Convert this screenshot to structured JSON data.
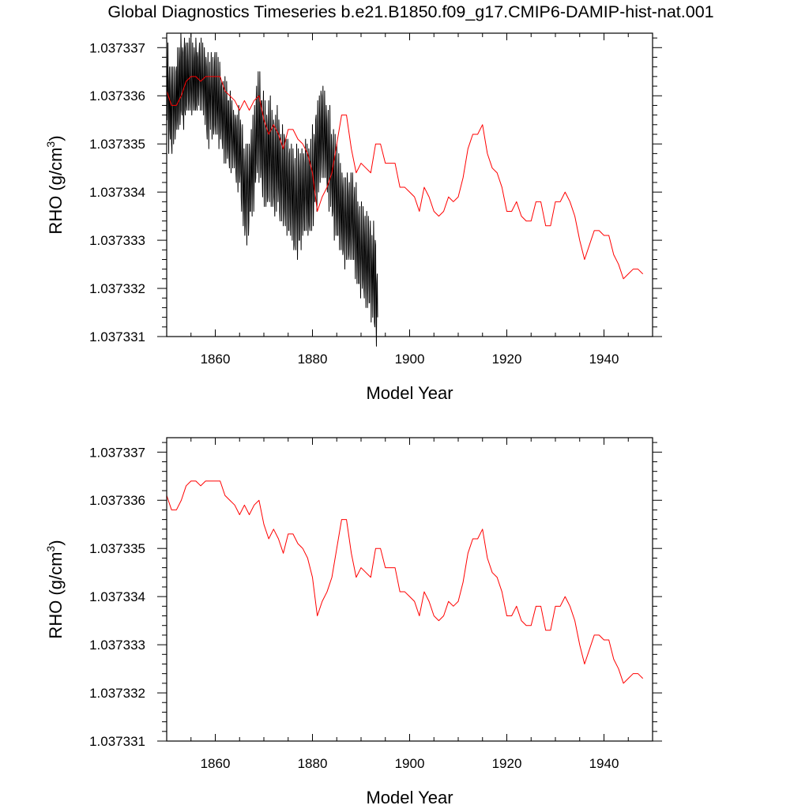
{
  "title": "Global Diagnostics Timeseries b.e21.B1850.f09_g17.CMIP6-DAMIP-hist-nat.001",
  "chart_data": [
    {
      "type": "line",
      "xlabel": "Model Year",
      "ylabel_main": "RHO (g/cm",
      "ylabel_sup": "3",
      "ylabel_close": ")",
      "xlim": [
        1850,
        1950
      ],
      "ylim": [
        1.037331,
        1.0373373
      ],
      "xticks": [
        1860,
        1880,
        1900,
        1920,
        1940
      ],
      "yticks": [
        1.037331,
        1.037332,
        1.037333,
        1.037334,
        1.037335,
        1.037336,
        1.037337
      ],
      "ytick_labels": [
        "1.037331",
        "1.037332",
        "1.037333",
        "1.037334",
        "1.037335",
        "1.037336",
        "1.037337"
      ],
      "grid": false,
      "series": [
        {
          "kind": "monthly",
          "color": "#000000",
          "x_start": 1850,
          "x_step": 0.08333,
          "values": [
            1.0373362,
            1.0373355,
            1.0373364,
            1.0373371,
            1.0373356,
            1.0373348,
            1.0373363,
            1.0373366,
            1.0373353,
            1.0373351,
            1.0373361,
            1.0373366,
            1.037335,
            1.0373348,
            1.0373362,
            1.0373366,
            1.0373358,
            1.037335,
            1.0373357,
            1.0373366,
            1.0373359,
            1.0373351,
            1.0373355,
            1.0373365,
            1.0373366,
            1.0373353,
            1.0373355,
            1.037337,
            1.0373364,
            1.0373353,
            1.0373357,
            1.037337,
            1.0373367,
            1.0373354,
            1.0373357,
            1.0373373,
            1.0373369,
            1.0373357,
            1.0373356,
            1.037337,
            1.0373369,
            1.0373356,
            1.0373353,
            1.0373369,
            1.0373372,
            1.0373357,
            1.0373356,
            1.037337,
            1.0373371,
            1.0373358,
            1.0373357,
            1.0373367,
            1.0373371,
            1.0373361,
            1.0373357,
            1.0373367,
            1.0373372,
            1.0373359,
            1.0373357,
            1.0373363,
            1.0373373,
            1.0373362,
            1.0373356,
            1.0373361,
            1.0373371,
            1.0373367,
            1.0373357,
            1.0373359,
            1.037337,
            1.0373368,
            1.0373357,
            1.0373357,
            1.0373372,
            1.0373369,
            1.0373358,
            1.0373357,
            1.0373369,
            1.0373368,
            1.037336,
            1.0373358,
            1.0373369,
            1.0373371,
            1.0373362,
            1.0373357,
            1.0373366,
            1.0373372,
            1.0373362,
            1.0373357,
            1.0373363,
            1.0373371,
            1.0373364,
            1.0373356,
            1.037336,
            1.037337,
            1.0373366,
            1.0373354,
            1.0373358,
            1.0373368,
            1.0373366,
            1.0373353,
            1.0373351,
            1.0373364,
            1.0373369,
            1.0373357,
            1.0373349,
            1.0373361,
            1.0373367,
            1.0373359,
            1.0373353,
            1.0373361,
            1.0373369,
            1.0373362,
            1.0373351,
            1.0373354,
            1.0373368,
            1.0373364,
            1.0373352,
            1.0373354,
            1.0373367,
            1.0373369,
            1.0373354,
            1.0373352,
            1.0373363,
            1.0373369,
            1.0373357,
            1.0373352,
            1.0373358,
            1.0373368,
            1.0373359,
            1.0373349,
            1.0373355,
            1.0373367,
            1.0373363,
            1.0373351,
            1.0373353,
            1.0373362,
            1.0373363,
            1.0373351,
            1.0373349,
            1.0373359,
            1.0373363,
            1.0373353,
            1.0373346,
            1.0373356,
            1.0373364,
            1.0373356,
            1.0373346,
            1.0373351,
            1.0373363,
            1.0373357,
            1.0373347,
            1.0373349,
            1.0373359,
            1.0373359,
            1.0373347,
            1.0373345,
            1.0373356,
            1.0373361,
            1.0373352,
            1.0373344,
            1.0373355,
            1.0373359,
            1.0373352,
            1.0373345,
            1.0373349,
            1.0373357,
            1.0373354,
            1.0373345,
            1.0373348,
            1.0373356,
            1.0373355,
            1.0373344,
            1.0373342,
            1.0373353,
            1.0373356,
            1.0373347,
            1.037334,
            1.0373346,
            1.0373358,
            1.0373352,
            1.0373342,
            1.0373344,
            1.0373355,
            1.0373353,
            1.0373339,
            1.0373336,
            1.0373348,
            1.0373354,
            1.0373344,
            1.0373333,
            1.0373338,
            1.0373349,
            1.0373344,
            1.0373331,
            1.0373333,
            1.0373346,
            1.037335,
            1.0373338,
            1.0373329,
            1.0373342,
            1.037335,
            1.0373342,
            1.0373331,
            1.0373334,
            1.037335,
            1.0373347,
            1.0373336,
            1.0373336,
            1.0373348,
            1.0373353,
            1.0373342,
            1.0373335,
            1.0373347,
            1.0373356,
            1.0373346,
            1.0373336,
            1.0373342,
            1.0373358,
            1.0373353,
            1.0373342,
            1.0373343,
            1.0373359,
            1.0373362,
            1.0373346,
            1.0373344,
            1.0373357,
            1.0373365,
            1.0373352,
            1.0373342,
            1.0373352,
            1.0373365,
            1.0373357,
            1.0373343,
            1.0373345,
            1.0373359,
            1.0373359,
            1.0373343,
            1.0373339,
            1.0373354,
            1.0373361,
            1.0373347,
            1.0373337,
            1.0373346,
            1.0373359,
            1.037335,
            1.0373337,
            1.0373341,
            1.0373356,
            1.0373354,
            1.0373338,
            1.0373339,
            1.0373354,
            1.0373359,
            1.0373346,
            1.0373338,
            1.037335,
            1.037336,
            1.0373348,
            1.0373337,
            1.0373343,
            1.0373357,
            1.0373351,
            1.0373337,
            1.0373339,
            1.0373355,
            1.0373354,
            1.0373339,
            1.0373335,
            1.0373349,
            1.0373356,
            1.0373345,
            1.0373336,
            1.0373344,
            1.0373358,
            1.0373349,
            1.0373338,
            1.0373341,
            1.0373355,
            1.0373352,
            1.0373336,
            1.0373334,
            1.0373348,
            1.0373352,
            1.037334,
            1.0373334,
            1.0373343,
            1.0373354,
            1.0373346,
            1.0373333,
            1.0373337,
            1.0373352,
            1.0373351,
            1.0373336,
            1.0373333,
            1.0373344,
            1.0373351,
            1.0373343,
            1.0373331,
            1.0373339,
            1.0373351,
            1.0373346,
            1.0373332,
            1.0373332,
            1.0373348,
            1.0373349,
            1.0373335,
            1.0373331,
            1.0373342,
            1.037335,
            1.0373341,
            1.037333,
            1.0373336,
            1.0373349,
            1.0373345,
            1.0373328,
            1.0373329,
            1.0373343,
            1.0373347,
            1.0373336,
            1.0373328,
            1.0373338,
            1.037335,
            1.0373338,
            1.0373326,
            1.0373334,
            1.0373349,
            1.0373345,
            1.037333,
            1.037333,
            1.0373344,
            1.0373348,
            1.0373337,
            1.0373328,
            1.0373338,
            1.0373349,
            1.0373342,
            1.0373331,
            1.0373335,
            1.0373348,
            1.0373346,
            1.0373332,
            1.0373332,
            1.0373346,
            1.0373351,
            1.0373339,
            1.0373332,
            1.0373339,
            1.037335,
            1.0373341,
            1.0373331,
            1.0373334,
            1.0373349,
            1.0373347,
            1.0373333,
            1.0373332,
            1.0373346,
            1.0373351,
            1.0373338,
            1.0373332,
            1.0373341,
            1.0373354,
            1.0373345,
            1.0373333,
            1.0373338,
            1.0373352,
            1.037335,
            1.0373338,
            1.037334,
            1.0373355,
            1.0373356,
            1.0373343,
            1.0373336,
            1.0373349,
            1.0373359,
            1.0373351,
            1.037334,
            1.0373345,
            1.037336,
            1.0373355,
            1.0373342,
            1.0373345,
            1.0373361,
            1.037336,
            1.0373347,
            1.0373343,
            1.0373357,
            1.0373362,
            1.0373349,
            1.0373343,
            1.0373351,
            1.0373361,
            1.0373354,
            1.0373343,
            1.0373347,
            1.0373358,
            1.0373355,
            1.0373342,
            1.037334,
            1.0373354,
            1.0373357,
            1.0373344,
            1.0373336,
            1.0373348,
            1.0373358,
            1.0373349,
            1.0373337,
            1.0373341,
            1.0373352,
            1.0373349,
            1.0373335,
            1.0373336,
            1.0373348,
            1.0373353,
            1.037334,
            1.037333,
            1.0373341,
            1.0373352,
            1.0373343,
            1.0373331,
            1.0373335,
            1.037335,
            1.0373345,
            1.0373331,
            1.0373331,
            1.0373343,
            1.0373348,
            1.0373335,
            1.0373328,
            1.0373337,
            1.0373346,
            1.0373337,
            1.0373328,
            1.0373332,
            1.0373344,
            1.0373341,
            1.0373327,
            1.0373328,
            1.037334,
            1.0373343,
            1.0373331,
            1.0373324,
            1.0373335,
            1.0373343,
            1.0373335,
            1.0373326,
            1.0373331,
            1.0373344,
            1.037334,
            1.0373326,
            1.0373327,
            1.0373339,
            1.0373342,
            1.037333,
            1.0373326,
            1.0373334,
            1.0373344,
            1.0373337,
            1.0373326,
            1.0373331,
            1.0373344,
            1.037334,
            1.0373326,
            1.0373326,
            1.0373338,
            1.0373341,
            1.0373329,
            1.0373322,
            1.0373333,
            1.0373342,
            1.0373332,
            1.0373321,
            1.0373326,
            1.0373338,
            1.0373335,
            1.0373321,
            1.0373321,
            1.0373333,
            1.0373337,
            1.0373326,
            1.0373318,
            1.0373327,
            1.0373338,
            1.0373329,
            1.037332,
            1.0373322,
            1.0373337,
            1.0373334,
            1.037332,
            1.0373318,
            1.0373331,
            1.0373335,
            1.0373325,
            1.0373316,
            1.0373324,
            1.0373336,
            1.0373328,
            1.0373316,
            1.0373321,
            1.0373335,
            1.0373332,
            1.0373317,
            1.0373317,
            1.037333,
            1.0373334,
            1.0373323,
            1.0373313,
            1.0373322,
            1.0373331,
            1.0373325,
            1.0373314,
            1.037332,
            1.0373334,
            1.0373327,
            1.0373313,
            1.0373312,
            1.037333,
            1.0373329,
            1.0373315,
            1.0373308,
            1.0373321,
            1.0373323,
            1.0373314
          ]
        },
        {
          "kind": "annual",
          "color": "#ff0000",
          "x_start": 1850,
          "x_step": 1,
          "values": [
            1.0373361,
            1.0373358,
            1.0373358,
            1.037336,
            1.0373363,
            1.0373364,
            1.0373364,
            1.0373363,
            1.0373364,
            1.0373364,
            1.0373364,
            1.0373364,
            1.0373361,
            1.037336,
            1.0373359,
            1.0373357,
            1.0373359,
            1.0373357,
            1.0373359,
            1.037336,
            1.0373355,
            1.0373352,
            1.0373354,
            1.0373352,
            1.0373349,
            1.0373353,
            1.0373353,
            1.0373351,
            1.037335,
            1.0373348,
            1.0373344,
            1.0373336,
            1.0373339,
            1.0373341,
            1.0373344,
            1.037335,
            1.0373356,
            1.0373356,
            1.0373349,
            1.0373344,
            1.0373346,
            1.0373345,
            1.0373344,
            1.037335,
            1.037335,
            1.0373346,
            1.0373346,
            1.0373346,
            1.0373341,
            1.0373341,
            1.037334,
            1.0373339,
            1.0373336,
            1.0373341,
            1.0373339,
            1.0373336,
            1.0373335,
            1.0373336,
            1.0373339,
            1.0373338,
            1.0373339,
            1.0373343,
            1.0373349,
            1.0373352,
            1.0373352,
            1.0373354,
            1.0373348,
            1.0373345,
            1.0373344,
            1.0373341,
            1.0373336,
            1.0373336,
            1.0373338,
            1.0373335,
            1.0373334,
            1.0373334,
            1.0373338,
            1.0373338,
            1.0373333,
            1.0373333,
            1.0373338,
            1.0373338,
            1.037334,
            1.0373338,
            1.0373335,
            1.037333,
            1.0373326,
            1.0373329,
            1.0373332,
            1.0373332,
            1.0373331,
            1.0373331,
            1.0373327,
            1.0373325,
            1.0373322,
            1.0373323,
            1.0373324,
            1.0373324,
            1.0373323
          ]
        }
      ]
    },
    {
      "type": "line",
      "xlabel": "Model Year",
      "ylabel_main": "RHO (g/cm",
      "ylabel_sup": "3",
      "ylabel_close": ")",
      "xlim": [
        1850,
        1950
      ],
      "ylim": [
        1.037331,
        1.0373373
      ],
      "xticks": [
        1860,
        1880,
        1900,
        1920,
        1940
      ],
      "yticks": [
        1.037331,
        1.037332,
        1.037333,
        1.037334,
        1.037335,
        1.037336,
        1.037337
      ],
      "ytick_labels": [
        "1.037331",
        "1.037332",
        "1.037333",
        "1.037334",
        "1.037335",
        "1.037336",
        "1.037337"
      ],
      "grid": false,
      "series": [
        {
          "kind": "annual",
          "color": "#ff0000",
          "x_start": 1850,
          "x_step": 1,
          "values": [
            1.0373361,
            1.0373358,
            1.0373358,
            1.037336,
            1.0373363,
            1.0373364,
            1.0373364,
            1.0373363,
            1.0373364,
            1.0373364,
            1.0373364,
            1.0373364,
            1.0373361,
            1.037336,
            1.0373359,
            1.0373357,
            1.0373359,
            1.0373357,
            1.0373359,
            1.037336,
            1.0373355,
            1.0373352,
            1.0373354,
            1.0373352,
            1.0373349,
            1.0373353,
            1.0373353,
            1.0373351,
            1.037335,
            1.0373348,
            1.0373344,
            1.0373336,
            1.0373339,
            1.0373341,
            1.0373344,
            1.037335,
            1.0373356,
            1.0373356,
            1.0373349,
            1.0373344,
            1.0373346,
            1.0373345,
            1.0373344,
            1.037335,
            1.037335,
            1.0373346,
            1.0373346,
            1.0373346,
            1.0373341,
            1.0373341,
            1.037334,
            1.0373339,
            1.0373336,
            1.0373341,
            1.0373339,
            1.0373336,
            1.0373335,
            1.0373336,
            1.0373339,
            1.0373338,
            1.0373339,
            1.0373343,
            1.0373349,
            1.0373352,
            1.0373352,
            1.0373354,
            1.0373348,
            1.0373345,
            1.0373344,
            1.0373341,
            1.0373336,
            1.0373336,
            1.0373338,
            1.0373335,
            1.0373334,
            1.0373334,
            1.0373338,
            1.0373338,
            1.0373333,
            1.0373333,
            1.0373338,
            1.0373338,
            1.037334,
            1.0373338,
            1.0373335,
            1.037333,
            1.0373326,
            1.0373329,
            1.0373332,
            1.0373332,
            1.0373331,
            1.0373331,
            1.0373327,
            1.0373325,
            1.0373322,
            1.0373323,
            1.0373324,
            1.0373324,
            1.0373323
          ]
        }
      ]
    }
  ]
}
